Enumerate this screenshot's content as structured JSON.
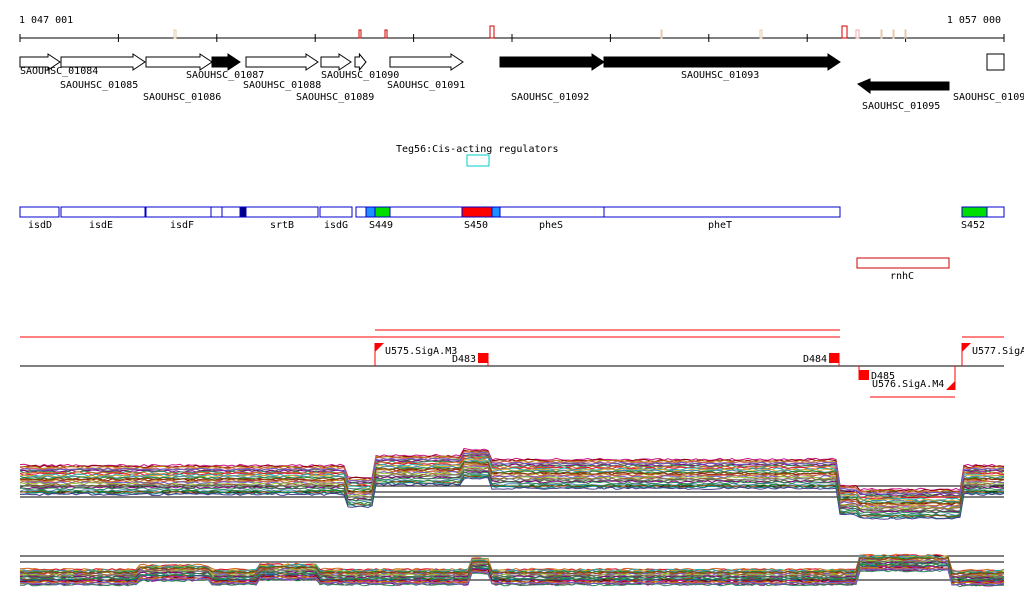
{
  "coords": {
    "start": "1 047 001",
    "end": "1 057 000"
  },
  "genes": [
    {
      "label": "SAOUHSC_01084",
      "fill": "white",
      "dir": 1,
      "arrow": "1",
      "lab": "1",
      "labrow": 0
    },
    {
      "label": "SAOUHSC_01085",
      "fill": "white",
      "dir": 1,
      "arrow": "1",
      "lab": "1",
      "labrow": 1
    },
    {
      "label": "SAOUHSC_01086",
      "fill": "white",
      "dir": 1,
      "arrow": "1",
      "lab": "1",
      "labrow": 2
    },
    {
      "label": "SAOUHSC_01087",
      "fill": "black",
      "dir": 1,
      "arrow": "1",
      "lab": "1",
      "labrow": 0
    },
    {
      "label": "SAOUHSC_01088",
      "fill": "white",
      "dir": 1,
      "arrow": "1",
      "lab": "1",
      "labrow": 1
    },
    {
      "label": "SAOUHSC_01089",
      "fill": "white",
      "dir": 1,
      "arrow": "1",
      "lab": "1",
      "labrow": 2
    },
    {
      "label": "SAOUHSC_01090",
      "fill": "white",
      "dir": 1,
      "arrow": "1",
      "lab": "1",
      "labrow": 0
    },
    {
      "label": "SAOUHSC_01091",
      "fill": "white",
      "dir": 1,
      "arrow": "1",
      "lab": "1",
      "labrow": 1
    },
    {
      "label": "SAOUHSC_01092",
      "fill": "black",
      "dir": 1,
      "arrow": "1",
      "lab": "1",
      "labrow": 2
    },
    {
      "label": "SAOUHSC_01093",
      "fill": "black",
      "dir": 1,
      "arrow": "1",
      "lab": "1",
      "labrow": 1
    },
    {
      "label": "SAOUHSC_01095",
      "fill": "black",
      "dir": -1,
      "arrow": "1",
      "lab": "1",
      "labrow": 3
    },
    {
      "label": "SAOUHSC_0109",
      "fill": "white",
      "dir": 1,
      "arrow": "0",
      "lab": "1",
      "labrow": 2
    }
  ],
  "regulator": {
    "label": "Teg56:Cis-acting regulators",
    "color": "#00cccc"
  },
  "features": [
    {
      "label": "isdD",
      "fill": "#ffffff"
    },
    {
      "label": "isdE",
      "fill": "#ffffff"
    },
    {
      "label": "isdF",
      "fill": "#ffffff"
    },
    {
      "label": "",
      "fill": "#ffffff"
    },
    {
      "label": "",
      "fill": "#ffffff"
    },
    {
      "label": "",
      "fill": "#000080"
    },
    {
      "label": "srtB",
      "fill": "#ffffff"
    },
    {
      "label": "isdG",
      "fill": "#ffffff"
    },
    {
      "label": "",
      "fill": "#ffffff"
    },
    {
      "label": "",
      "fill": "#1e90ff"
    },
    {
      "label": "S449",
      "fill": "#00dd00"
    },
    {
      "label": "",
      "fill": "#ffffff"
    },
    {
      "label": "S450",
      "fill": "#ff0000"
    },
    {
      "label": "",
      "fill": "#1e90ff"
    },
    {
      "label": "pheS",
      "fill": "#ffffff"
    },
    {
      "label": "pheT",
      "fill": "#ffffff"
    },
    {
      "label": "S452",
      "fill": "#00dd00"
    },
    {
      "label": "",
      "fill": "#ffffff"
    }
  ],
  "rnhc": {
    "label": "rnhC",
    "color": "#cc0000"
  },
  "promoters": [
    {
      "label": "U575.SigA.M3",
      "strand": "+"
    },
    {
      "label": "U576.SigA.M4",
      "strand": "-"
    },
    {
      "label": "U577.SigA",
      "strand": "+"
    }
  ],
  "terminators": [
    {
      "label": "D483",
      "strand": "+"
    },
    {
      "label": "D484",
      "strand": "+"
    },
    {
      "label": "D485",
      "strand": "-"
    }
  ],
  "colors": {
    "gene_outline": "#000000",
    "feature_outline": "#0000cc",
    "annotation": "#ff0000",
    "axis": "#000000"
  }
}
